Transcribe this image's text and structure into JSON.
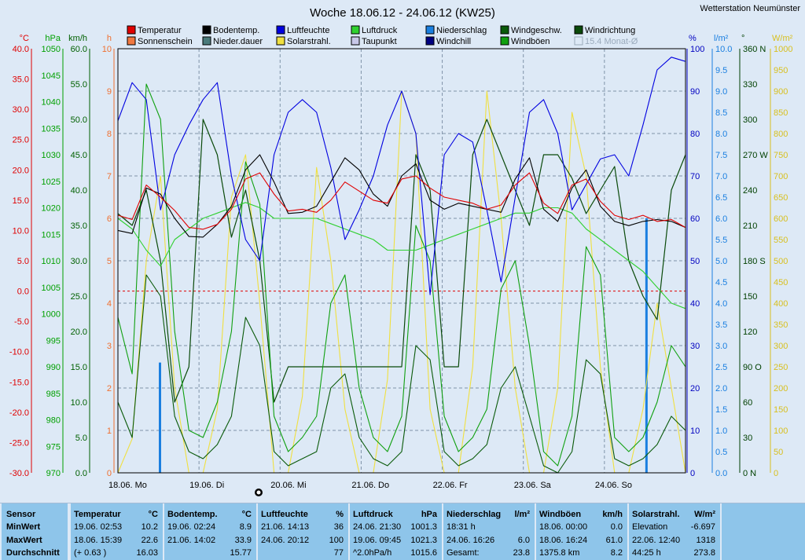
{
  "station_name": "Wetterstation Neumünster",
  "chart_data": {
    "type": "line",
    "title": "Woche 18.06.12 - 24.06.12 (KW25)",
    "legend": [
      {
        "name": "Temperatur",
        "color": "#e00000"
      },
      {
        "name": "Sonnenschein",
        "color": "#f07840"
      },
      {
        "name": "Bodentemp.",
        "color": "#000000"
      },
      {
        "name": "Nieder.dauer",
        "color": "#4a7a7a"
      },
      {
        "name": "Luftfeuchte",
        "color": "#0000e0"
      },
      {
        "name": "Solarstrahl.",
        "color": "#f0e040"
      },
      {
        "name": "Luftdruck",
        "color": "#30d030"
      },
      {
        "name": "Taupunkt",
        "color": "#c8c8e8"
      },
      {
        "name": "Niederschlag",
        "color": "#1a7fe0"
      },
      {
        "name": "Windchill",
        "color": "#000080"
      },
      {
        "name": "Windgeschw.",
        "color": "#0a5a0a"
      },
      {
        "name": "Windböen",
        "color": "#10a010"
      },
      {
        "name": "Windrichtung",
        "color": "#0a4a0a"
      },
      {
        "name": "15.4 Monat-Ø",
        "color": "#9aaabb"
      }
    ],
    "x_tick_labels": [
      "18.06. Mo",
      "19.06. Di",
      "20.06. Mi",
      "21.06. Do",
      "22.06. Fr",
      "23.06. Sa",
      "24.06. So"
    ],
    "left_axes": [
      {
        "unit": "°C",
        "color": "#e00000",
        "ticks": [
          "40.0",
          "35.0",
          "30.0",
          "25.0",
          "20.0",
          "15.0",
          "10.0",
          "5.0",
          "0.0",
          "-5.0",
          "-10.0",
          "-15.0",
          "-20.0",
          "-25.0",
          "-30.0"
        ]
      },
      {
        "unit": "hPa",
        "color": "#00a000",
        "ticks": [
          "1050",
          "1045",
          "1040",
          "1035",
          "1030",
          "1025",
          "1020",
          "1015",
          "1010",
          "1005",
          "1000",
          "995",
          "990",
          "985",
          "980",
          "975",
          "970"
        ]
      },
      {
        "unit": "km/h",
        "color": "#006000",
        "ticks": [
          "60.0",
          "55.0",
          "50.0",
          "45.0",
          "40.0",
          "35.0",
          "30.0",
          "25.0",
          "20.0",
          "15.0",
          "10.0",
          "5.0",
          "0.0"
        ]
      },
      {
        "unit": "h",
        "color": "#f07030",
        "ticks": [
          "10",
          "9",
          "8",
          "7",
          "6",
          "5",
          "4",
          "3",
          "2",
          "1",
          "0"
        ]
      }
    ],
    "right_axes": [
      {
        "unit": "%",
        "color": "#0000c0",
        "ticks": [
          "100",
          "90",
          "80",
          "70",
          "60",
          "50",
          "40",
          "30",
          "20",
          "10",
          "0"
        ]
      },
      {
        "unit": "l/m²",
        "color": "#1a7fe0",
        "ticks": [
          "10.0",
          "9.5",
          "9.0",
          "8.5",
          "8.0",
          "7.5",
          "7.0",
          "6.5",
          "6.0",
          "5.5",
          "5.0",
          "4.5",
          "4.0",
          "3.5",
          "3.0",
          "2.5",
          "2.0",
          "1.5",
          "1.0",
          "0.5",
          "0.0"
        ]
      },
      {
        "unit": "°",
        "color": "#004000",
        "ticks": [
          "360 N",
          "330",
          "300",
          "270 W",
          "240",
          "210",
          "180 S",
          "150",
          "120",
          "90 O",
          "60",
          "30",
          "0 N"
        ]
      },
      {
        "unit": "W/m²",
        "color": "#d8c020",
        "ticks": [
          "1000",
          "950",
          "900",
          "850",
          "800",
          "750",
          "700",
          "650",
          "600",
          "550",
          "500",
          "450",
          "400",
          "350",
          "300",
          "250",
          "200",
          "150",
          "100",
          "50",
          "0"
        ]
      }
    ],
    "series": [
      {
        "name": "Temperatur",
        "unit": "°C",
        "values": [
          12.5,
          11.8,
          17.5,
          15.5,
          13.3,
          10.5,
          10.2,
          11.0,
          13.5,
          18.5,
          19.5,
          16.0,
          13.2,
          13.5,
          13.0,
          15.0,
          18.0,
          16.5,
          15.0,
          14.5,
          18.5,
          19.0,
          17.0,
          15.5,
          15.0,
          14.5,
          13.5,
          14.2,
          17.5,
          19.5,
          14.5,
          12.8,
          17.5,
          18.5,
          14.8,
          12.5,
          11.8,
          12.5,
          11.5,
          11.8,
          10.5
        ]
      },
      {
        "name": "Bodentemp.",
        "unit": "°C",
        "values": [
          10.0,
          9.5,
          17.0,
          16.0,
          12.0,
          9.0,
          8.9,
          11.0,
          14.0,
          20.0,
          22.5,
          18.0,
          12.8,
          13.0,
          14.0,
          18.0,
          22.0,
          20.0,
          16.0,
          14.0,
          19.0,
          21.0,
          15.0,
          13.5,
          14.5,
          14.0,
          13.5,
          13.0,
          18.5,
          22.0,
          13.5,
          11.5,
          17.0,
          20.0,
          14.0,
          11.5,
          10.8,
          11.5,
          11.8,
          11.5,
          10.5
        ]
      },
      {
        "name": "Luftfeuchte",
        "unit": "%",
        "values": [
          83,
          92,
          88,
          62,
          75,
          82,
          88,
          92,
          70,
          55,
          50,
          75,
          85,
          88,
          85,
          72,
          55,
          62,
          70,
          82,
          90,
          80,
          42,
          75,
          80,
          78,
          62,
          45,
          65,
          85,
          88,
          80,
          62,
          68,
          74,
          75,
          70,
          82,
          95,
          98,
          97
        ]
      },
      {
        "name": "Luftdruck",
        "unit": "hPa",
        "values": [
          1018,
          1016,
          1012,
          1009,
          1014,
          1016,
          1018,
          1019,
          1020,
          1021,
          1020,
          1018,
          1018,
          1018,
          1018,
          1017,
          1016,
          1015,
          1014,
          1012,
          1012,
          1012,
          1013,
          1014,
          1015,
          1016,
          1017,
          1018,
          1019,
          1019,
          1020,
          1020,
          1019,
          1016,
          1014,
          1012,
          1010,
          1008,
          1005,
          1002,
          1001
        ]
      },
      {
        "name": "Windgeschw.",
        "unit": "km/h",
        "values": [
          10,
          5,
          28,
          25,
          8,
          3,
          2,
          4,
          8,
          22,
          18,
          3,
          1,
          2,
          3,
          12,
          14,
          5,
          2,
          1,
          3,
          18,
          16,
          3,
          1,
          2,
          4,
          12,
          15,
          8,
          1,
          0,
          3,
          16,
          14,
          2,
          1,
          2,
          4,
          8,
          6
        ]
      },
      {
        "name": "Windböen",
        "unit": "km/h",
        "values": [
          22,
          14,
          55,
          50,
          20,
          6,
          5,
          10,
          20,
          44,
          38,
          8,
          3,
          5,
          8,
          24,
          28,
          12,
          5,
          3,
          8,
          35,
          30,
          8,
          3,
          5,
          9,
          26,
          30,
          18,
          3,
          1,
          8,
          32,
          28,
          5,
          3,
          5,
          10,
          18,
          15
        ]
      },
      {
        "name": "Solarstrahl.",
        "unit": "W/m²",
        "values": [
          0,
          80,
          500,
          700,
          200,
          0,
          0,
          150,
          650,
          750,
          400,
          0,
          0,
          180,
          720,
          500,
          150,
          0,
          0,
          220,
          900,
          800,
          150,
          0,
          0,
          250,
          900,
          600,
          200,
          0,
          0,
          200,
          850,
          700,
          250,
          0,
          0,
          150,
          400,
          200,
          0
        ]
      },
      {
        "name": "Windrichtung",
        "unit": "°",
        "values": [
          220,
          210,
          240,
          180,
          60,
          90,
          300,
          270,
          200,
          240,
          180,
          60,
          90,
          90,
          90,
          90,
          90,
          90,
          90,
          90,
          90,
          270,
          240,
          90,
          90,
          270,
          300,
          270,
          240,
          210,
          270,
          270,
          250,
          220,
          240,
          260,
          180,
          150,
          130,
          240,
          270
        ]
      }
    ],
    "rain_bars": [
      {
        "day": "18.06.",
        "mm": 2.6
      },
      {
        "day": "24.06.",
        "mm": 6.0
      }
    ],
    "reference_lines": [
      {
        "name": "0 °C",
        "value": 0.0,
        "style": "dashed",
        "color": "#e00000"
      }
    ]
  },
  "stats": {
    "row_labels": [
      "Sensor",
      "MinWert",
      "MaxWert",
      "Durchschnitt"
    ],
    "columns": [
      {
        "sensor": "Temperatur",
        "unit": "°C",
        "min_time": "19.06.  02:53",
        "min_val": "10.2",
        "max_time": "18.06.  15:39",
        "max_val": "22.6",
        "avg_note": "(+ 0.63 )",
        "avg_val": "16.03"
      },
      {
        "sensor": "Bodentemp.",
        "unit": "°C",
        "min_time": "19.06.  02:24",
        "min_val": "8.9",
        "max_time": "21.06.  14:02",
        "max_val": "33.9",
        "avg_note": "",
        "avg_val": "15.77"
      },
      {
        "sensor": "Luftfeuchte",
        "unit": "%",
        "min_time": "21.06.  14:13",
        "min_val": "36",
        "max_time": "24.06.  20:12",
        "max_val": "100",
        "avg_note": "",
        "avg_val": "77"
      },
      {
        "sensor": "Luftdruck",
        "unit": "hPa",
        "min_time": "24.06.  21:30",
        "min_val": "1001.3",
        "max_time": "19.06.  09:45",
        "max_val": "1021.3",
        "avg_note": "^2.0hPa/h",
        "avg_val": "1015.6"
      },
      {
        "sensor": "Niederschlag",
        "unit": "l/m²",
        "min_time": "18:31 h",
        "min_val": "",
        "max_time": "24.06.  16:26",
        "max_val": "6.0",
        "avg_note": "Gesamt:",
        "avg_val": "23.8"
      },
      {
        "sensor": "Windböen",
        "unit": "km/h",
        "min_time": "18.06.  00:00",
        "min_val": "0.0",
        "max_time": "18.06.  16:24",
        "max_val": "61.0",
        "avg_note": "1375.8 km",
        "avg_val": "8.2"
      },
      {
        "sensor": "Solarstrahl.",
        "unit": "W/m²",
        "min_time": "Elevation",
        "min_val": "-6.697",
        "max_time": "22.06.  12:40",
        "max_val": "1318",
        "avg_note": "44:25 h",
        "avg_val": "273.8"
      }
    ]
  }
}
